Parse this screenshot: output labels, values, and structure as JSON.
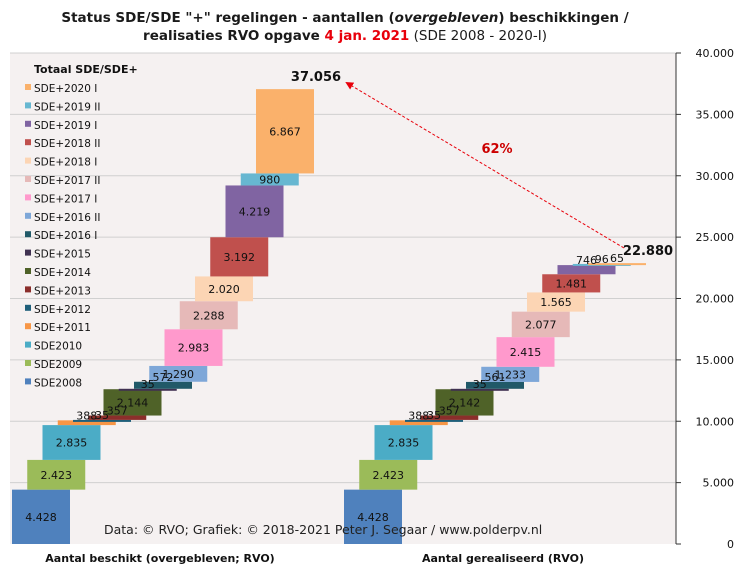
{
  "chart_data": {
    "type": "bar",
    "title_line1_parts": [
      "Status SDE/SDE  \"+\" regelingen  - aantallen (",
      "overgebleven",
      ") beschikkingen  /"
    ],
    "title_line2_parts": [
      "realisaties RVO  opgave ",
      "4 jan. 2021",
      " (SDE 2008 - 2020-I)"
    ],
    "legend_title": "Totaal SDE/SDE+",
    "categories": [
      "Aantal beschikt (overgebleven; RVO)",
      "Aantal gerealiseerd (RVO)"
    ],
    "series": [
      {
        "name": "SDE2008",
        "color": "#4f81bd",
        "values": [
          4428,
          4428
        ],
        "labels": [
          "4.428",
          "4.428"
        ]
      },
      {
        "name": "SDE2009",
        "color": "#9bbb59",
        "values": [
          2423,
          2423
        ],
        "labels": [
          "2.423",
          "2.423"
        ]
      },
      {
        "name": "SDE2010",
        "color": "#4bacc6",
        "values": [
          2835,
          2835
        ],
        "labels": [
          "2.835",
          "2.835"
        ]
      },
      {
        "name": "SDE+2011",
        "color": "#f79646",
        "values": [
          388,
          388
        ],
        "labels": [
          "388",
          "388"
        ]
      },
      {
        "name": "SDE+2012",
        "color": "#1f5f7a",
        "values": [
          35,
          35
        ],
        "labels": [
          "35",
          "35"
        ]
      },
      {
        "name": "SDE+2013",
        "color": "#8b2e2b",
        "values": [
          357,
          357
        ],
        "labels": [
          "357",
          "357"
        ]
      },
      {
        "name": "SDE+2014",
        "color": "#4f6228",
        "values": [
          2144,
          2142
        ],
        "labels": [
          "2.144",
          "2.142"
        ]
      },
      {
        "name": "SDE+2015",
        "color": "#403151",
        "values": [
          35,
          35
        ],
        "labels": [
          "35",
          "35"
        ]
      },
      {
        "name": "SDE+2016 I",
        "color": "#215968",
        "values": [
          572,
          561
        ],
        "labels": [
          "572",
          "561"
        ]
      },
      {
        "name": "SDE+2016 II",
        "color": "#7ea7d8",
        "values": [
          1290,
          1233
        ],
        "labels": [
          "1.290",
          "1.233"
        ]
      },
      {
        "name": "SDE+2017 I",
        "color": "#ff99cc",
        "values": [
          2983,
          2415
        ],
        "labels": [
          "2.983",
          "2.415"
        ]
      },
      {
        "name": "SDE+2017 II",
        "color": "#e6b9b8",
        "values": [
          2288,
          2077
        ],
        "labels": [
          "2.288",
          "2.077"
        ]
      },
      {
        "name": "SDE+2018 I",
        "color": "#fcd5b4",
        "values": [
          2020,
          1565
        ],
        "labels": [
          "2.020",
          "1.565"
        ]
      },
      {
        "name": "SDE+2018 II",
        "color": "#c0504d",
        "values": [
          3192,
          1481
        ],
        "labels": [
          "3.192",
          "1.481"
        ]
      },
      {
        "name": "SDE+2019 I",
        "color": "#8064a2",
        "values": [
          4219,
          746
        ],
        "labels": [
          "4.219",
          "746"
        ]
      },
      {
        "name": "SDE+2019 II",
        "color": "#67b7d1",
        "values": [
          980,
          96
        ],
        "labels": [
          "980",
          "96"
        ]
      },
      {
        "name": "SDE+2020 I",
        "color": "#fab16b",
        "values": [
          6867,
          65
        ],
        "labels": [
          "6.867",
          "65"
        ]
      }
    ],
    "totals": [
      "37.056",
      "22.880"
    ],
    "total_values": [
      37056,
      22880
    ],
    "annotation": "62%",
    "ylim": [
      0,
      40000
    ],
    "y_ticks": [
      0,
      5000,
      10000,
      15000,
      20000,
      25000,
      30000,
      35000,
      40000
    ],
    "y_tick_labels": [
      "0",
      "5.000",
      "10.000",
      "15.000",
      "20.000",
      "25.000",
      "30.000",
      "35.000",
      "40.000"
    ],
    "credit": "Data: © RVO;  Grafiek:  © 2018-2021  Peter J. Segaar / www.polderpv.nl",
    "plot_background": "#f5f1f1",
    "grid": true
  }
}
